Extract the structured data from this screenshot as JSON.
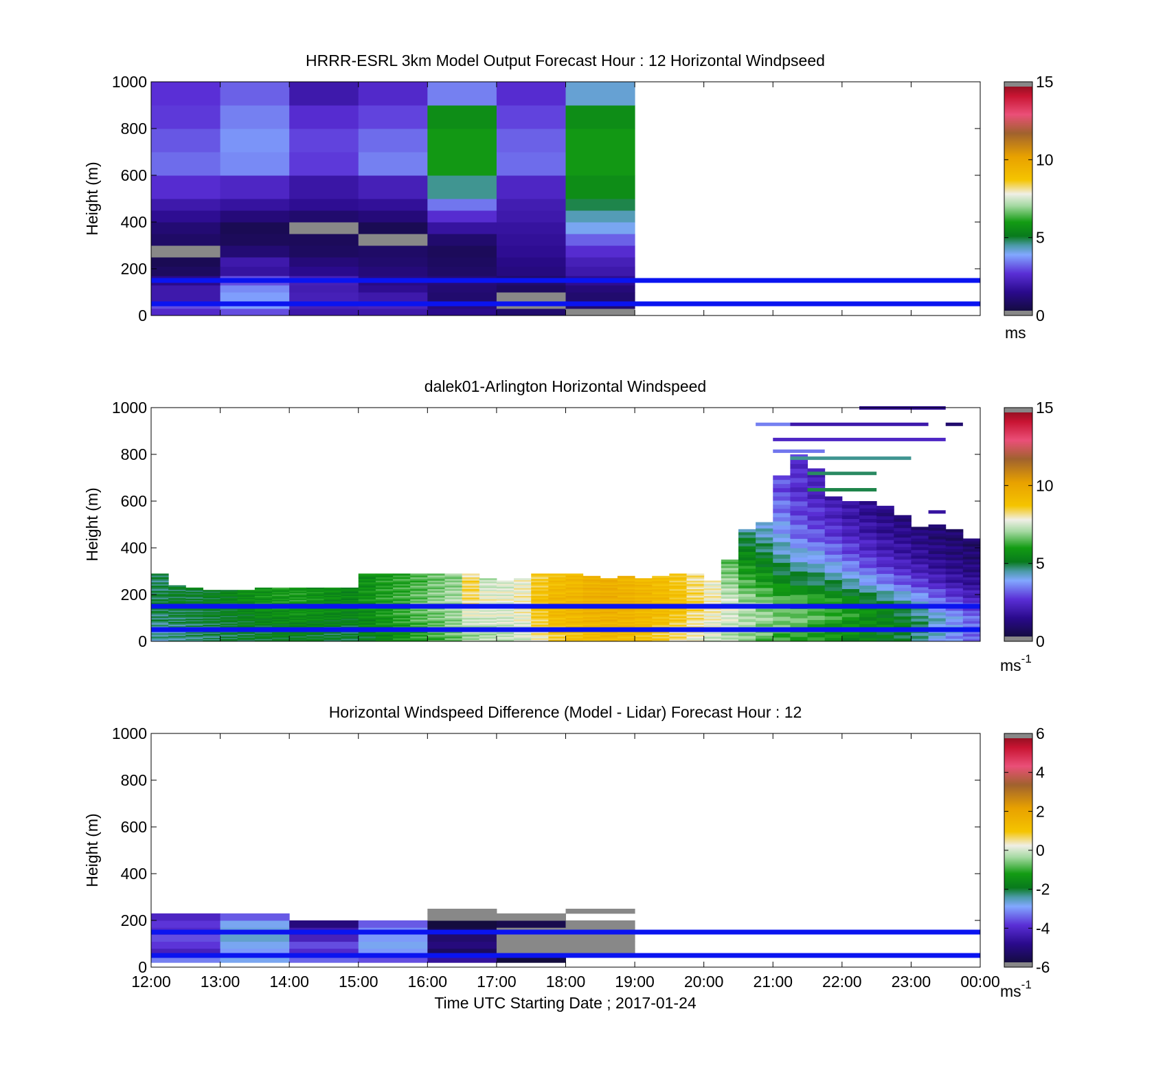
{
  "figure": {
    "xlabel": "Time UTC  Starting Date ; 2017-01-24",
    "x_ticks": [
      "12:00",
      "13:00",
      "14:00",
      "15:00",
      "16:00",
      "17:00",
      "18:00",
      "19:00",
      "20:00",
      "21:00",
      "22:00",
      "23:00",
      "00:00"
    ],
    "y_ticks": [
      "0",
      "200",
      "400",
      "600",
      "800",
      "1000"
    ],
    "reference_line_heights_m": [
      50,
      150
    ],
    "reference_line_color": "#0a14f0"
  },
  "chart_data": [
    {
      "type": "heatmap",
      "title": "HRRR-ESRL 3km Model Output   Forecast Hour : 12 Horizontal Windpseed",
      "ylabel": "Height (m)",
      "ylim": [
        0,
        1000
      ],
      "xlim": [
        "12:00",
        "00:00"
      ],
      "colorbar": {
        "ticks": [
          "0",
          "5",
          "10",
          "15"
        ],
        "range": [
          0,
          15
        ],
        "unit": "ms"
      },
      "x_bins": [
        "12:00",
        "13:00",
        "14:00",
        "15:00",
        "16:00",
        "17:00",
        "18:00"
      ],
      "z_levels_m": [
        20,
        50,
        80,
        115,
        150,
        190,
        230,
        270,
        320,
        370,
        420,
        470,
        560,
        650,
        750,
        850,
        950
      ],
      "z_edges_m": [
        0,
        30,
        60,
        100,
        130,
        170,
        210,
        250,
        300,
        350,
        400,
        450,
        500,
        600,
        700,
        800,
        900,
        1000
      ],
      "values": [
        [
          2.5,
          3.0,
          2.0,
          2.0,
          1.5,
          1.0,
          0.0
        ],
        [
          3.0,
          3.8,
          2.2,
          2.3,
          1.3,
          0.0,
          1.0
        ],
        [
          2.0,
          3.8,
          2.2,
          2.0,
          1.0,
          0.0,
          1.0
        ],
        [
          2.0,
          3.6,
          2.1,
          1.6,
          1.1,
          0.8,
          1.2
        ],
        [
          1.5,
          3.0,
          2.2,
          1.4,
          1.2,
          1.0,
          1.6
        ],
        [
          0.8,
          1.8,
          1.5,
          1.2,
          0.9,
          1.3,
          2.0
        ],
        [
          0.6,
          2.0,
          1.2,
          1.0,
          0.8,
          1.4,
          2.2
        ],
        [
          0.0,
          1.1,
          0.8,
          0.9,
          0.7,
          1.6,
          2.6
        ],
        [
          0.9,
          0.7,
          0.7,
          0.0,
          1.0,
          1.7,
          3.2
        ],
        [
          1.1,
          0.6,
          0.0,
          0.6,
          1.8,
          1.8,
          4.0
        ],
        [
          1.6,
          1.2,
          1.0,
          1.2,
          2.6,
          2.0,
          4.4
        ],
        [
          2.0,
          1.8,
          1.6,
          1.7,
          3.4,
          2.1,
          4.9
        ],
        [
          2.6,
          2.4,
          1.9,
          2.2,
          4.6,
          2.4,
          5.6
        ],
        [
          3.3,
          3.6,
          2.8,
          3.5,
          5.9,
          3.3,
          5.9
        ],
        [
          3.1,
          3.7,
          2.9,
          3.3,
          5.9,
          3.2,
          5.9
        ],
        [
          2.8,
          3.5,
          2.6,
          2.9,
          5.6,
          2.9,
          5.6
        ],
        [
          2.7,
          3.2,
          2.0,
          2.5,
          3.5,
          2.6,
          4.2
        ]
      ]
    },
    {
      "type": "heatmap",
      "title": "dalek01-Arlington  Horizontal Windspeed",
      "ylabel": "Height (m)",
      "ylim": [
        0,
        1000
      ],
      "xlim": [
        "12:00",
        "00:00"
      ],
      "colorbar": {
        "ticks": [
          "0",
          "5",
          "10",
          "15"
        ],
        "range": [
          0,
          15
        ],
        "unit": "ms",
        "unit_exponent": "-1"
      },
      "x_bins": [
        "12:00",
        "12:15",
        "12:30",
        "12:45",
        "13:00",
        "13:15",
        "13:30",
        "13:45",
        "14:00",
        "14:15",
        "14:30",
        "14:45",
        "15:00",
        "15:15",
        "15:30",
        "15:45",
        "16:00",
        "16:15",
        "16:30",
        "16:45",
        "17:00",
        "17:15",
        "17:30",
        "17:45",
        "18:00",
        "18:15",
        "18:30",
        "18:45",
        "19:00",
        "19:15",
        "19:30",
        "19:45",
        "20:00",
        "20:15",
        "20:30",
        "20:45",
        "21:00",
        "21:15",
        "21:30",
        "21:45",
        "22:00",
        "22:15",
        "22:30",
        "22:45",
        "23:00",
        "23:15",
        "23:30",
        "23:45"
      ],
      "profiles": [
        {
          "t": "12:00",
          "top": 290,
          "v": [
            4.5,
            4.6,
            4.8,
            5.0,
            4.8,
            4.9,
            5.2,
            5.4
          ]
        },
        {
          "t": "12:15",
          "top": 240,
          "v": [
            4.6,
            4.7,
            4.9,
            5.1,
            5.0,
            5.0,
            5.3,
            5.2
          ]
        },
        {
          "t": "12:30",
          "top": 230,
          "v": [
            4.7,
            4.8,
            5.0,
            5.0,
            5.1,
            5.2,
            5.1,
            5.0
          ]
        },
        {
          "t": "12:45",
          "top": 220,
          "v": [
            4.8,
            4.9,
            5.1,
            5.2,
            5.2,
            5.3,
            5.0,
            4.9
          ]
        },
        {
          "t": "13:00",
          "top": 220,
          "v": [
            4.9,
            5.0,
            5.2,
            5.3,
            5.4,
            5.4,
            5.2,
            5.0
          ]
        },
        {
          "t": "13:15",
          "top": 220,
          "v": [
            5.0,
            5.1,
            5.3,
            5.6,
            5.6,
            5.5,
            5.3,
            5.1
          ]
        },
        {
          "t": "13:30",
          "top": 230,
          "v": [
            5.1,
            5.2,
            5.5,
            5.8,
            5.7,
            5.6,
            5.4,
            5.2
          ]
        },
        {
          "t": "13:45",
          "top": 230,
          "v": [
            5.2,
            5.3,
            5.6,
            5.9,
            5.9,
            5.8,
            5.6,
            5.3
          ]
        },
        {
          "t": "14:00",
          "top": 230,
          "v": [
            5.2,
            5.3,
            5.7,
            6.0,
            5.9,
            5.8,
            5.5,
            5.2
          ]
        },
        {
          "t": "14:15",
          "top": 230,
          "v": [
            5.1,
            5.2,
            5.6,
            5.8,
            5.7,
            5.6,
            5.4,
            5.1
          ]
        },
        {
          "t": "14:30",
          "top": 230,
          "v": [
            5.0,
            5.1,
            5.5,
            5.6,
            5.6,
            5.5,
            5.3,
            5.0
          ]
        },
        {
          "t": "14:45",
          "top": 230,
          "v": [
            5.0,
            5.1,
            5.4,
            5.5,
            5.4,
            5.3,
            5.2,
            5.0
          ]
        },
        {
          "t": "15:00",
          "top": 290,
          "v": [
            5.2,
            5.4,
            5.6,
            5.8,
            5.7,
            5.6,
            5.5,
            5.2
          ]
        },
        {
          "t": "15:15",
          "top": 290,
          "v": [
            5.5,
            5.7,
            5.9,
            6.1,
            6.0,
            5.9,
            5.7,
            5.4
          ]
        },
        {
          "t": "15:30",
          "top": 290,
          "v": [
            5.8,
            6.0,
            6.2,
            6.3,
            6.2,
            6.1,
            5.9,
            5.6
          ]
        },
        {
          "t": "15:45",
          "top": 290,
          "v": [
            6.1,
            6.3,
            6.5,
            6.6,
            6.4,
            6.3,
            6.1,
            5.9
          ]
        },
        {
          "t": "16:00",
          "top": 290,
          "v": [
            6.3,
            6.5,
            6.7,
            6.9,
            6.7,
            6.5,
            6.3,
            6.1
          ]
        },
        {
          "t": "16:15",
          "top": 290,
          "v": [
            6.6,
            6.8,
            7.0,
            7.2,
            6.9,
            6.7,
            6.5,
            6.3
          ]
        },
        {
          "t": "16:30",
          "top": 290,
          "v": [
            7.0,
            7.2,
            7.6,
            8.2,
            8.4,
            7.6,
            7.0,
            6.6
          ]
        },
        {
          "t": "16:45",
          "top": 270,
          "v": [
            7.2,
            7.3,
            7.6,
            7.9,
            7.4,
            7.0,
            6.8,
            6.6
          ]
        },
        {
          "t": "17:00",
          "top": 260,
          "v": [
            7.3,
            7.4,
            7.6,
            7.8,
            7.5,
            7.2,
            7.0,
            6.8
          ]
        },
        {
          "t": "17:15",
          "top": 270,
          "v": [
            7.5,
            7.6,
            7.8,
            8.0,
            7.8,
            7.6,
            7.5,
            7.3
          ]
        },
        {
          "t": "17:30",
          "top": 290,
          "v": [
            8.0,
            8.3,
            8.6,
            8.9,
            8.6,
            8.3,
            8.0,
            7.6
          ]
        },
        {
          "t": "17:45",
          "top": 290,
          "v": [
            8.5,
            8.8,
            9.1,
            9.3,
            9.0,
            8.7,
            8.4,
            8.0
          ]
        },
        {
          "t": "18:00",
          "top": 290,
          "v": [
            8.8,
            9.0,
            9.2,
            9.4,
            9.2,
            9.0,
            8.8,
            8.5
          ]
        },
        {
          "t": "18:15",
          "top": 280,
          "v": [
            9.0,
            9.2,
            9.4,
            9.6,
            9.5,
            9.2,
            9.0,
            8.7
          ]
        },
        {
          "t": "18:30",
          "top": 270,
          "v": [
            9.2,
            9.4,
            9.5,
            9.7,
            9.6,
            9.4,
            9.1,
            8.8
          ]
        },
        {
          "t": "18:45",
          "top": 280,
          "v": [
            9.0,
            9.2,
            9.4,
            9.6,
            9.4,
            9.2,
            9.0,
            8.7
          ]
        },
        {
          "t": "19:00",
          "top": 270,
          "v": [
            8.8,
            9.0,
            9.2,
            9.4,
            9.2,
            9.0,
            8.7,
            8.4
          ]
        },
        {
          "t": "19:15",
          "top": 280,
          "v": [
            8.5,
            8.7,
            9.0,
            9.2,
            9.0,
            8.8,
            8.5,
            8.2
          ]
        },
        {
          "t": "19:30",
          "top": 290,
          "v": [
            8.2,
            8.4,
            8.7,
            8.9,
            8.7,
            8.5,
            8.2,
            7.9
          ]
        },
        {
          "t": "19:45",
          "top": 290,
          "v": [
            7.8,
            8.0,
            8.2,
            8.4,
            8.2,
            8.0,
            7.8,
            7.6
          ]
        },
        {
          "t": "20:00",
          "top": 260,
          "v": [
            7.5,
            7.7,
            7.9,
            8.0,
            7.8,
            7.6,
            7.4,
            7.2
          ]
        },
        {
          "t": "20:15",
          "top": 350,
          "v": [
            7.2,
            7.4,
            7.6,
            7.5,
            7.0,
            6.5,
            5.8,
            5.4
          ]
        },
        {
          "t": "20:30",
          "top": 480,
          "v": [
            6.8,
            7.0,
            7.2,
            7.0,
            6.4,
            5.6,
            4.6,
            3.8
          ]
        },
        {
          "t": "20:45",
          "top": 510,
          "v": [
            6.5,
            6.8,
            7.0,
            6.8,
            6.0,
            5.2,
            4.2,
            3.4
          ]
        },
        {
          "t": "21:00",
          "top": 710,
          "v": [
            6.3,
            6.6,
            6.8,
            6.6,
            5.5,
            4.6,
            3.8,
            3.0
          ]
        },
        {
          "t": "21:15",
          "top": 800,
          "v": [
            6.1,
            6.4,
            6.6,
            6.4,
            5.2,
            4.2,
            3.2,
            2.6
          ]
        },
        {
          "t": "21:30",
          "top": 740,
          "v": [
            5.9,
            6.2,
            6.4,
            6.2,
            5.0,
            4.0,
            2.9,
            2.3
          ]
        },
        {
          "t": "21:45",
          "top": 620,
          "v": [
            5.7,
            6.0,
            6.2,
            6.0,
            4.8,
            3.6,
            2.6,
            1.9
          ]
        },
        {
          "t": "22:00",
          "top": 600,
          "v": [
            5.5,
            5.8,
            6.0,
            5.6,
            4.4,
            3.2,
            2.2,
            1.6
          ]
        },
        {
          "t": "22:15",
          "top": 600,
          "v": [
            5.4,
            5.6,
            5.7,
            5.3,
            4.0,
            2.8,
            1.9,
            1.3
          ]
        },
        {
          "t": "22:30",
          "top": 580,
          "v": [
            5.2,
            5.4,
            5.4,
            5.0,
            3.6,
            2.4,
            1.6,
            1.1
          ]
        },
        {
          "t": "22:45",
          "top": 540,
          "v": [
            4.9,
            5.1,
            5.1,
            4.6,
            3.2,
            2.1,
            1.4,
            0.9
          ]
        },
        {
          "t": "23:00",
          "top": 490,
          "v": [
            4.5,
            4.7,
            4.7,
            4.1,
            2.8,
            1.8,
            1.2,
            0.8
          ]
        },
        {
          "t": "23:15",
          "top": 500,
          "v": [
            4.1,
            4.3,
            4.2,
            3.6,
            2.4,
            1.5,
            1.0,
            0.7
          ]
        },
        {
          "t": "23:30",
          "top": 480,
          "v": [
            3.7,
            3.9,
            3.7,
            3.1,
            2.0,
            1.3,
            0.9,
            0.6
          ]
        },
        {
          "t": "23:45",
          "top": 440,
          "v": [
            3.3,
            3.5,
            3.2,
            2.6,
            1.7,
            1.1,
            0.8,
            0.5
          ]
        }
      ],
      "profile_levels_m": [
        20,
        60,
        110,
        170,
        250,
        350,
        480,
        650
      ],
      "streaks": [
        {
          "t0": "20:45",
          "t1": "21:15",
          "h": 930,
          "v": 3.5
        },
        {
          "t0": "21:15",
          "t1": "23:15",
          "h": 930,
          "v": 2.0
        },
        {
          "t0": "23:30",
          "t1": "23:45",
          "h": 930,
          "v": 1.0
        },
        {
          "t0": "22:15",
          "t1": "23:30",
          "h": 1000,
          "v": 1.6
        },
        {
          "t0": "21:00",
          "t1": "23:30",
          "h": 865,
          "v": 2.4
        },
        {
          "t0": "21:00",
          "t1": "21:45",
          "h": 815,
          "v": 3.4
        },
        {
          "t0": "21:15",
          "t1": "23:00",
          "h": 785,
          "v": 4.6
        },
        {
          "t0": "21:30",
          "t1": "22:30",
          "h": 720,
          "v": 4.8
        },
        {
          "t0": "21:30",
          "t1": "22:30",
          "h": 650,
          "v": 4.9
        },
        {
          "t0": "23:15",
          "t1": "23:30",
          "h": 555,
          "v": 1.8
        }
      ]
    },
    {
      "type": "heatmap",
      "title": "Horizontal Windspeed Difference (Model - Lidar) Forecast Hour : 12",
      "ylabel": "Height (m)",
      "ylim": [
        0,
        1000
      ],
      "xlim": [
        "12:00",
        "00:00"
      ],
      "xlabel": "Time UTC  Starting Date ; 2017-01-24",
      "colorbar": {
        "ticks": [
          "-6",
          "-4",
          "-2",
          "0",
          "2",
          "4",
          "6"
        ],
        "range": [
          -6,
          6
        ],
        "unit": "ms",
        "unit_exponent": "-1"
      },
      "x_bins": [
        "12:00",
        "13:00",
        "14:00",
        "15:00",
        "16:00",
        "17:00",
        "18:00"
      ],
      "z_edges_m": [
        20,
        50,
        80,
        110,
        140,
        170,
        200,
        230,
        250
      ],
      "values": [
        [
          -3.2,
          -2.8,
          -3.4,
          -3.6,
          -4.6,
          -5.8,
          null
        ],
        [
          -4.2,
          -3.0,
          -4.0,
          -3.0,
          -5.4,
          -6.0,
          -6.0
        ],
        [
          -3.8,
          -2.8,
          -3.6,
          -2.8,
          -5.0,
          -6.0,
          -6.0
        ],
        [
          -3.6,
          -2.6,
          -4.2,
          -3.0,
          -5.2,
          -6.0,
          -6.0
        ],
        [
          -4.0,
          -2.7,
          -4.4,
          -3.1,
          -5.6,
          -6.0,
          -6.0
        ],
        [
          -3.8,
          -2.8,
          -5.0,
          -3.5,
          -5.8,
          -5.6,
          -6.0
        ],
        [
          -4.1,
          -3.5,
          null,
          null,
          -5.9,
          -6.0,
          null
        ],
        [
          null,
          null,
          null,
          null,
          -6.0,
          null,
          -6.0
        ]
      ]
    }
  ]
}
